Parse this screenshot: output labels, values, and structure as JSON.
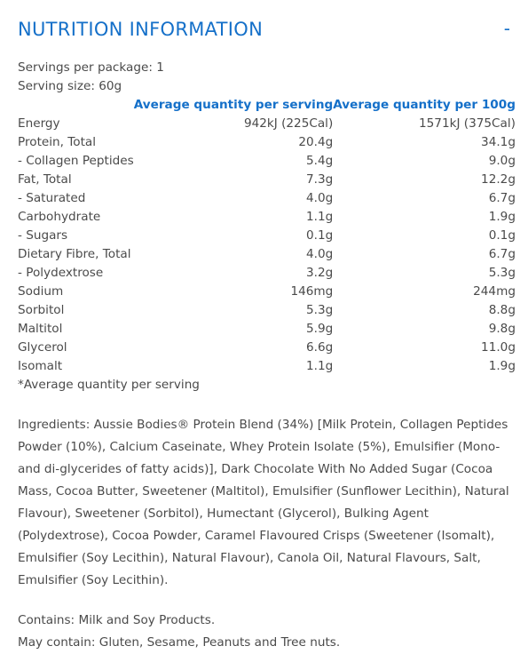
{
  "header": {
    "title": "NUTRITION INFORMATION",
    "toggle_symbol": "-"
  },
  "servings": {
    "per_package": "Servings per package: 1",
    "size": "Serving size: 60g"
  },
  "table": {
    "columns": [
      "",
      "Average quantity per serving",
      "Average quantity per 100g"
    ],
    "rows": [
      [
        "Energy",
        "942kJ (225Cal)",
        "1571kJ (375Cal)"
      ],
      [
        "Protein, Total",
        "20.4g",
        "34.1g"
      ],
      [
        "- Collagen Peptides",
        "5.4g",
        "9.0g"
      ],
      [
        "Fat, Total",
        "7.3g",
        "12.2g"
      ],
      [
        "- Saturated",
        "4.0g",
        "6.7g"
      ],
      [
        "Carbohydrate",
        "1.1g",
        "1.9g"
      ],
      [
        "- Sugars",
        "0.1g",
        "0.1g"
      ],
      [
        "Dietary Fibre, Total",
        "4.0g",
        "6.7g"
      ],
      [
        "- Polydextrose",
        "3.2g",
        "5.3g"
      ],
      [
        "Sodium",
        "146mg",
        "244mg"
      ],
      [
        "Sorbitol",
        "5.3g",
        "8.8g"
      ],
      [
        "Maltitol",
        "5.9g",
        "9.8g"
      ],
      [
        "Glycerol",
        "6.6g",
        "11.0g"
      ],
      [
        "Isomalt",
        "1.1g",
        "1.9g"
      ]
    ],
    "footnote": "*Average quantity per serving"
  },
  "ingredients": "Ingredients: Aussie Bodies® Protein Blend (34%) [Milk Protein, Collagen Peptides Powder (10%), Calcium Caseinate, Whey Protein Isolate (5%), Emulsifier (Mono-and di-glycerides of fatty acids)], Dark Chocolate With No Added Sugar (Cocoa Mass, Cocoa Butter, Sweetener (Maltitol), Emulsifier (Sunflower Lecithin), Natural Flavour), Sweetener (Sorbitol), Humectant (Glycerol), Bulking Agent (Polydextrose), Cocoa Powder, Caramel Flavoured Crisps (Sweetener (Isomalt), Emulsifier (Soy Lecithin), Natural Flavour), Canola Oil, Natural Flavours, Salt, Emulsifier (Soy Lecithin).",
  "allergens": {
    "contains": "Contains: Milk and Soy Products.",
    "may_contain": "May contain: Gluten, Sesame, Peanuts and Tree nuts."
  }
}
